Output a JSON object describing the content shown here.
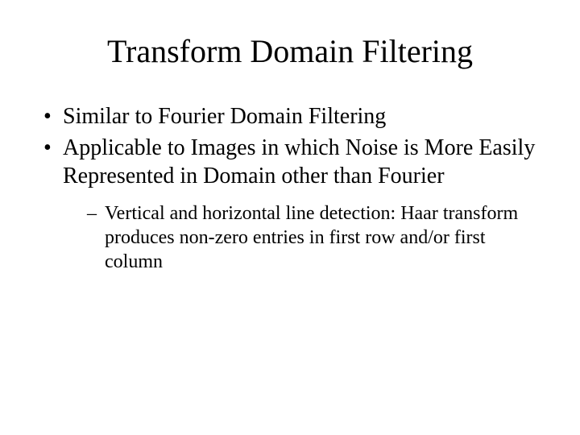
{
  "slide": {
    "title": "Transform Domain Filtering",
    "bullets": [
      {
        "text": "Similar to Fourier Domain Filtering"
      },
      {
        "text": "Applicable to Images in which Noise is More Easily Represented in Domain other than Fourier"
      }
    ],
    "subbullets": [
      {
        "text": "Vertical and horizontal line detection:  Haar transform produces non-zero entries in first row and/or first column"
      }
    ],
    "style": {
      "background_color": "#ffffff",
      "text_color": "#000000",
      "title_fontsize": 40,
      "bullet_fontsize": 28,
      "subbullet_fontsize": 24,
      "font_family": "Times New Roman"
    }
  }
}
